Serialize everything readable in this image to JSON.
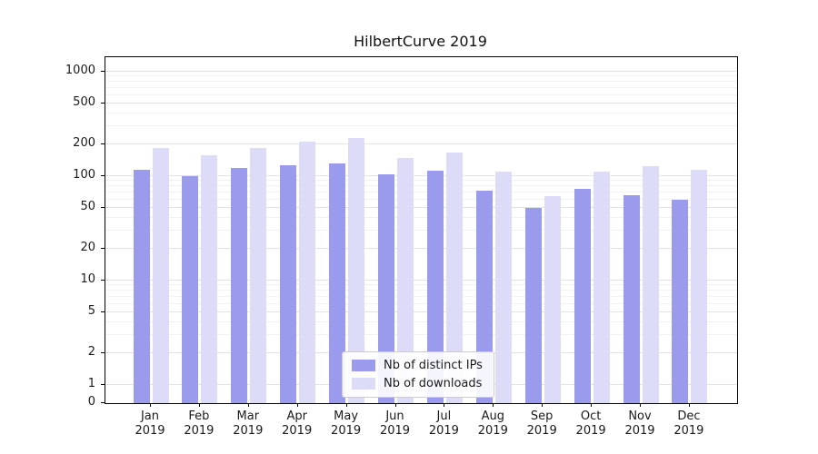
{
  "figure": {
    "title": "HilbertCurve 2019"
  },
  "chart_data": {
    "type": "bar",
    "title": "HilbertCurve 2019",
    "y_scale": "symlog",
    "ylim": [
      0,
      1400
    ],
    "grid": true,
    "y_ticks": [
      0,
      1,
      2,
      5,
      10,
      20,
      50,
      100,
      200,
      500,
      1000
    ],
    "x_ticks": [
      {
        "line1": "Jan",
        "line2": "2019"
      },
      {
        "line1": "Feb",
        "line2": "2019"
      },
      {
        "line1": "Mar",
        "line2": "2019"
      },
      {
        "line1": "Apr",
        "line2": "2019"
      },
      {
        "line1": "May",
        "line2": "2019"
      },
      {
        "line1": "Jun",
        "line2": "2019"
      },
      {
        "line1": "Jul",
        "line2": "2019"
      },
      {
        "line1": "Aug",
        "line2": "2019"
      },
      {
        "line1": "Sep",
        "line2": "2019"
      },
      {
        "line1": "Oct",
        "line2": "2019"
      },
      {
        "line1": "Nov",
        "line2": "2019"
      },
      {
        "line1": "Dec",
        "line2": "2019"
      }
    ],
    "categories": [
      "Jan 2019",
      "Feb 2019",
      "Mar 2019",
      "Apr 2019",
      "May 2019",
      "Jun 2019",
      "Jul 2019",
      "Aug 2019",
      "Sep 2019",
      "Oct 2019",
      "Nov 2019",
      "Dec 2019"
    ],
    "series": [
      {
        "name": "Nb of distinct IPs",
        "color": "#9b9bee",
        "values": [
          115,
          100,
          120,
          128,
          133,
          105,
          112,
          72,
          50,
          76,
          66,
          60
        ]
      },
      {
        "name": "Nb of downloads",
        "color": "#dcdcf9",
        "values": [
          185,
          160,
          185,
          215,
          230,
          150,
          168,
          110,
          65,
          110,
          125,
          115
        ]
      }
    ],
    "legend": {
      "position": "lower center",
      "entries": [
        "Nb of distinct IPs",
        "Nb of downloads"
      ]
    }
  }
}
